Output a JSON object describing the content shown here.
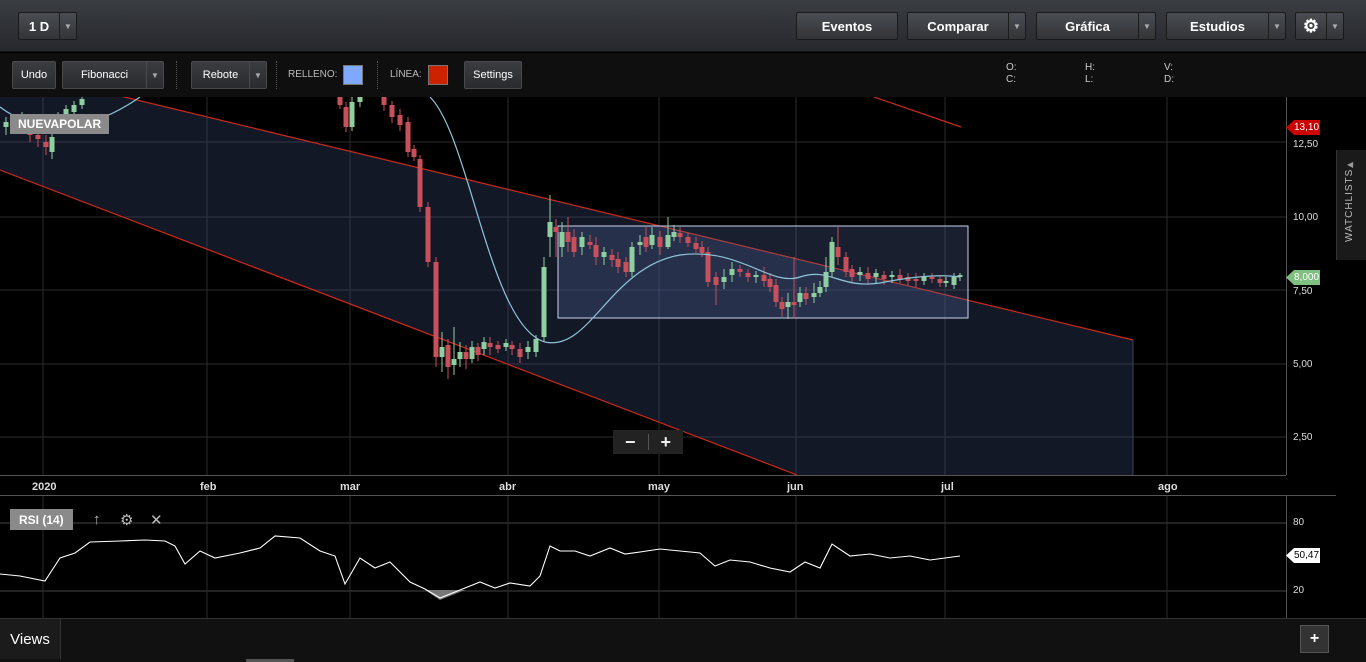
{
  "topbar": {
    "interval": "1 D",
    "eventos": "Eventos",
    "comparar": "Comparar",
    "grafica": "Gráfica",
    "estudios": "Estudios"
  },
  "toolbar": {
    "undo": "Undo",
    "fibonacci": "Fibonacci",
    "rebote": "Rebote",
    "relleno_label": "RELLENO:",
    "linea_label": "LÍNEA:",
    "relleno_color": "#7fa8ff",
    "linea_color": "#cc2200",
    "settings": "Settings"
  },
  "ohlc": {
    "o": "O:",
    "h": "H:",
    "v": "V:",
    "c": "C:",
    "l": "L:",
    "d": "D:"
  },
  "symbol": "NUEVAPOLAR",
  "price_axis": [
    "12,50",
    "10,00",
    "7,50",
    "5,00",
    "2,50"
  ],
  "price_tags": {
    "high": "13,10",
    "last": "8,000"
  },
  "time_axis": [
    "2020",
    "feb",
    "mar",
    "abr",
    "may",
    "jun",
    "jul",
    "ago"
  ],
  "zoom": {
    "minus": "−",
    "plus": "+"
  },
  "watchlists": "WATCHLISTS",
  "rsi": {
    "label": "RSI (14)",
    "axis": [
      "80",
      "20"
    ],
    "value": "50,47"
  },
  "bottom": {
    "views": "Views",
    "add": "+"
  },
  "icons": {
    "settings": "gear-icon",
    "caret": "caret-down-icon",
    "up": "arrow-up-icon",
    "close": "close-icon",
    "collapse": "chevron-left-icon"
  },
  "chart_data": {
    "type": "candlestick",
    "x_axis": [
      "2020",
      "feb",
      "mar",
      "abr",
      "may",
      "jun",
      "jul",
      "ago"
    ],
    "y_axis": {
      "ticks": [
        12.5,
        10.0,
        7.5,
        5.0,
        2.5
      ]
    },
    "last_price": 8.0,
    "max_marker": 13.1,
    "overlays": [
      "descending channel",
      "price range rectangle",
      "smoothed moving line"
    ],
    "rsi_value": 50.47
  }
}
